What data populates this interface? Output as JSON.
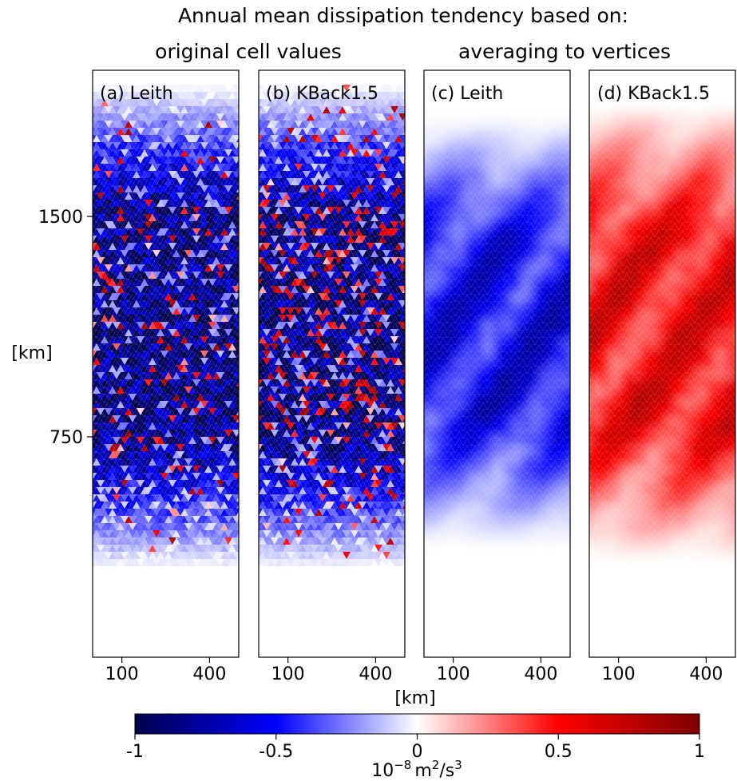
{
  "figure": {
    "title": "Annual mean dissipation tendency based on:",
    "group_titles": [
      "original cell values",
      "averaging to vertices"
    ],
    "x_label": "[km]",
    "y_label": "[km]",
    "colorbar_label_base": "10",
    "colorbar_label_exp": "−8",
    "colorbar_label_unit": "m",
    "colorbar_label_unit_exp": "2",
    "colorbar_label_rest": "/s",
    "colorbar_label_rest_exp": "3"
  },
  "chart_data": {
    "type": "heatmap",
    "x_ticks": [
      "100",
      "400"
    ],
    "y_ticks": [
      "750",
      "1500"
    ],
    "x_tick_values": [
      100,
      400
    ],
    "y_tick_values": [
      750,
      1500
    ],
    "x_range": [
      0,
      500
    ],
    "y_range": [
      0,
      2000
    ],
    "grid": false,
    "colormap": "seismic",
    "colormap_stops": [
      "#00004c",
      "#0000ff",
      "#ffffff",
      "#ff0000",
      "#7f0000"
    ],
    "color_range": [
      -1,
      1
    ],
    "colorbar_ticks": [
      "-1",
      "-0.5",
      "0",
      "0.5",
      "1"
    ],
    "colorbar_tick_values": [
      -1,
      -0.5,
      0,
      0.5,
      1
    ],
    "panels": [
      {
        "label": "(a) Leith",
        "group": "original cell values",
        "mean_sign": -1,
        "dense_band_km": [
          750,
          1500
        ]
      },
      {
        "label": "(b) KBack1.5",
        "group": "original cell values",
        "mean_sign": -1,
        "dense_band_km": [
          750,
          1500
        ]
      },
      {
        "label": "(c) Leith",
        "group": "averaging to vertices",
        "mean_sign": -1,
        "dense_band_km": [
          850,
          1400
        ]
      },
      {
        "label": "(d) KBack1.5",
        "group": "averaging to vertices",
        "mean_sign": 1,
        "dense_band_km": [
          800,
          1450
        ]
      }
    ]
  }
}
